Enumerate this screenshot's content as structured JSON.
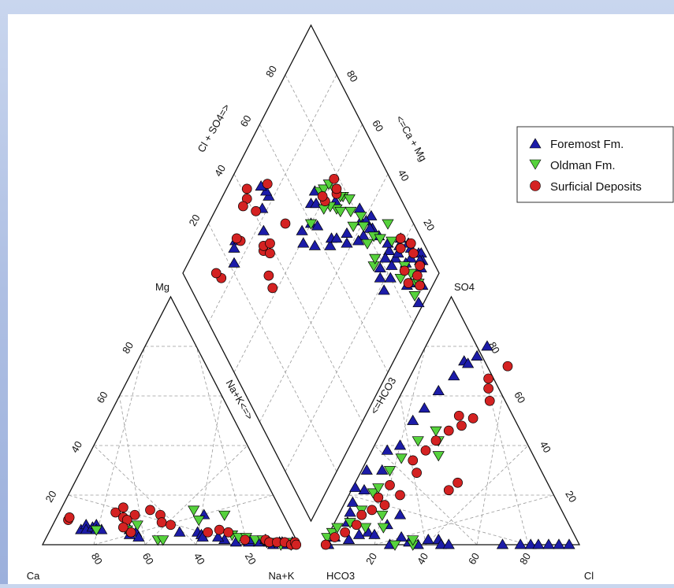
{
  "chart_data": {
    "type": "scatter",
    "subtype": "piper-diagram",
    "legend": {
      "placement": "right",
      "entries": [
        {
          "name": "Foremost Fm.",
          "marker": "triangle-up",
          "color": "#1c1ca8"
        },
        {
          "name": "Oldman Fm.",
          "marker": "triangle-down",
          "color": "#56d23c"
        },
        {
          "name": "Surficial Deposits",
          "marker": "circle",
          "color": "#d42222"
        }
      ]
    },
    "cation_triangle": {
      "corner_labels": {
        "left": "Ca",
        "right": "Na+K",
        "top": "Mg"
      },
      "bottom_ticks": [
        "80",
        "60",
        "40",
        "20"
      ],
      "left_ticks": [
        "20",
        "40",
        "60",
        "80"
      ]
    },
    "anion_triangle": {
      "corner_labels": {
        "left": "HCO3",
        "right": "Cl",
        "top": "SO4"
      },
      "bottom_ticks": [
        "20",
        "40",
        "60",
        "80"
      ],
      "right_ticks": [
        "20",
        "40",
        "60",
        "80"
      ]
    },
    "diamond": {
      "upper_left_label": "Cl + SO4=>",
      "upper_right_label": "<=Ca + Mg",
      "lower_left_label": "Na+K<=>",
      "lower_right_label": "<=HCO3",
      "upper_left_ticks": [
        "20",
        "40",
        "60",
        "80"
      ],
      "upper_right_ticks": [
        "20",
        "40",
        "60",
        "80"
      ]
    },
    "grid": true,
    "series": [
      {
        "name": "Foremost Fm.",
        "cation": [
          [
            12,
            6
          ],
          [
            15,
            6
          ],
          [
            13,
            8
          ],
          [
            14,
            6
          ],
          [
            16,
            7
          ],
          [
            17,
            8
          ],
          [
            18,
            6
          ],
          [
            20,
            6
          ],
          [
            31,
            6
          ],
          [
            32,
            4
          ],
          [
            34,
            5
          ],
          [
            36,
            3
          ],
          [
            51,
            5
          ],
          [
            58,
            5
          ],
          [
            60,
            4
          ],
          [
            61,
            3
          ],
          [
            70,
            2
          ],
          [
            75,
            1
          ],
          [
            80,
            1
          ],
          [
            84,
            1
          ],
          [
            88,
            1
          ],
          [
            90,
            0
          ],
          [
            92,
            1
          ],
          [
            95,
            0
          ],
          [
            57,
            12
          ],
          [
            67,
            3
          ],
          [
            97,
            1
          ],
          [
            93,
            1
          ],
          [
            86,
            2
          ],
          [
            80,
            2
          ]
        ],
        "anion": [
          [
            2,
            0
          ],
          [
            3,
            3
          ],
          [
            5,
            9
          ],
          [
            4,
            13
          ],
          [
            3,
            17
          ],
          [
            5,
            22
          ],
          [
            8,
            30
          ],
          [
            6,
            38
          ],
          [
            10,
            50
          ],
          [
            14,
            62
          ],
          [
            17,
            68
          ],
          [
            18,
            74
          ],
          [
            22,
            76
          ],
          [
            24,
            80
          ],
          [
            20,
            73
          ],
          [
            12,
            55
          ],
          [
            10,
            40
          ],
          [
            2,
            30
          ],
          [
            1,
            23
          ],
          [
            15,
            5
          ],
          [
            18,
            4
          ],
          [
            21,
            8
          ],
          [
            24,
            12
          ],
          [
            26,
            0
          ],
          [
            33,
            1
          ],
          [
            40,
            2
          ],
          [
            44,
            2
          ],
          [
            46,
            0
          ],
          [
            49,
            0
          ],
          [
            70,
            0
          ],
          [
            77,
            0
          ],
          [
            81,
            0
          ],
          [
            84,
            0
          ],
          [
            88,
            0
          ],
          [
            92,
            0
          ],
          [
            96,
            0
          ],
          [
            29,
            3
          ],
          [
            37,
            0
          ],
          [
            12,
            4
          ],
          [
            9,
            2
          ]
        ],
        "diamond": [
          [
            49,
            82
          ],
          [
            49,
            84
          ],
          [
            48,
            87
          ],
          [
            44,
            82
          ],
          [
            40,
            77
          ],
          [
            27,
            86
          ],
          [
            25,
            85
          ],
          [
            22,
            82
          ],
          [
            55,
            62
          ],
          [
            60,
            60
          ],
          [
            53,
            59
          ],
          [
            57,
            54
          ],
          [
            74,
            55
          ],
          [
            80,
            41
          ],
          [
            82,
            44
          ],
          [
            85,
            38
          ],
          [
            83,
            35
          ],
          [
            90,
            21
          ],
          [
            85,
            24
          ],
          [
            86,
            26
          ],
          [
            84,
            31
          ],
          [
            94,
            16
          ],
          [
            96,
            12
          ],
          [
            97,
            11
          ],
          [
            96,
            9
          ],
          [
            92,
            14
          ],
          [
            82,
            39
          ],
          [
            82,
            36
          ],
          [
            78,
            37
          ],
          [
            64,
            64
          ],
          [
            68,
            65
          ],
          [
            66,
            62
          ],
          [
            62,
            57
          ],
          [
            63,
            48
          ],
          [
            70,
            42
          ],
          [
            75,
            38
          ],
          [
            72,
            44
          ],
          [
            65,
            49
          ],
          [
            67,
            47
          ],
          [
            86,
            20
          ],
          [
            88,
            20
          ],
          [
            92,
            22
          ],
          [
            94,
            18
          ],
          [
            95,
            10
          ],
          [
            85,
            10
          ],
          [
            86,
            2
          ],
          [
            91,
            4
          ],
          [
            94,
            8
          ],
          [
            75,
            18
          ],
          [
            76,
            22
          ],
          [
            78,
            24
          ],
          [
            80,
            18
          ],
          [
            82,
            24
          ],
          [
            83,
            20
          ],
          [
            87,
            9
          ],
          [
            89,
            15
          ]
        ]
      },
      {
        "name": "Oldman Fm.",
        "cation": [
          [
            18,
            6
          ],
          [
            30,
            6
          ],
          [
            33,
            8
          ],
          [
            56,
            10
          ],
          [
            44,
            2
          ],
          [
            46,
            2
          ],
          [
            72,
            4
          ],
          [
            75,
            3
          ],
          [
            78,
            3
          ],
          [
            82,
            2
          ],
          [
            85,
            2
          ],
          [
            87,
            1
          ],
          [
            90,
            1
          ],
          [
            93,
            0
          ],
          [
            96,
            1
          ],
          [
            97,
            0
          ],
          [
            65,
            12
          ],
          [
            52,
            14
          ]
        ],
        "anion": [
          [
            0,
            3
          ],
          [
            1,
            5
          ],
          [
            2,
            7
          ],
          [
            6,
            9
          ],
          [
            8,
            14
          ],
          [
            9,
            21
          ],
          [
            10,
            23
          ],
          [
            11,
            30
          ],
          [
            13,
            35
          ],
          [
            16,
            42
          ],
          [
            21,
            46
          ],
          [
            24,
            42
          ],
          [
            27,
            36
          ],
          [
            28,
            0
          ],
          [
            20,
            7
          ],
          [
            35,
            0
          ],
          [
            34,
            2
          ],
          [
            13,
            7
          ],
          [
            17,
            12
          ]
        ],
        "diamond": [
          [
            78,
            53
          ],
          [
            77,
            54
          ],
          [
            80,
            50
          ],
          [
            70,
            63
          ],
          [
            72,
            62
          ],
          [
            76,
            58
          ],
          [
            60,
            60
          ],
          [
            73,
            53
          ],
          [
            78,
            47
          ],
          [
            76,
            43
          ],
          [
            74,
            51
          ],
          [
            80,
            39
          ],
          [
            81,
            42
          ],
          [
            71,
            56
          ],
          [
            68,
            58
          ],
          [
            75,
            61
          ],
          [
            82,
            33
          ],
          [
            84,
            30
          ],
          [
            90,
            30
          ],
          [
            88,
            25
          ],
          [
            78,
            34
          ],
          [
            76,
            27
          ],
          [
            84,
            14
          ],
          [
            88,
            15
          ],
          [
            89,
            11
          ],
          [
            89,
            7
          ],
          [
            86,
            5
          ],
          [
            90,
            6
          ],
          [
            78,
            28
          ]
        ]
      },
      {
        "name": "Surficial Deposits",
        "cation": [
          [
            5,
            10
          ],
          [
            5,
            11
          ],
          [
            30,
            12
          ],
          [
            22,
            13
          ],
          [
            24,
            15
          ],
          [
            26,
            11
          ],
          [
            28,
            10
          ],
          [
            35,
            14
          ],
          [
            40,
            12
          ],
          [
            42,
            9
          ],
          [
            46,
            8
          ],
          [
            32,
            5
          ],
          [
            28,
            7
          ],
          [
            66,
            6
          ],
          [
            70,
            5
          ],
          [
            78,
            2
          ],
          [
            86,
            2
          ],
          [
            88,
            1
          ],
          [
            91,
            1
          ],
          [
            94,
            1
          ],
          [
            97,
            0
          ],
          [
            98,
            1
          ],
          [
            99,
            0
          ],
          [
            62,
            5
          ]
        ],
        "anion": [
          [
            1,
            0
          ],
          [
            3,
            3
          ],
          [
            6,
            5
          ],
          [
            9,
            8
          ],
          [
            9,
            12
          ],
          [
            12,
            14
          ],
          [
            12,
            19
          ],
          [
            14,
            24
          ],
          [
            18,
            34
          ],
          [
            21,
            38
          ],
          [
            23,
            42
          ],
          [
            26,
            46
          ],
          [
            30,
            48
          ],
          [
            33,
            51
          ],
          [
            36,
            58
          ],
          [
            33,
            63
          ],
          [
            36,
            72
          ],
          [
            31,
            67
          ],
          [
            27,
            52
          ],
          [
            16,
            16
          ],
          [
            20,
            20
          ],
          [
            40,
            25
          ],
          [
            38,
            22
          ],
          [
            22,
            29
          ]
        ],
        "diamond": [
          [
            40,
            90
          ],
          [
            42,
            92
          ],
          [
            41,
            84
          ],
          [
            37,
            90
          ],
          [
            51,
            85
          ],
          [
            29,
            84
          ],
          [
            28,
            86
          ],
          [
            33,
            66
          ],
          [
            32,
            62
          ],
          [
            14,
            84
          ],
          [
            13,
            87
          ],
          [
            36,
            73
          ],
          [
            37,
            74
          ],
          [
            38,
            70
          ],
          [
            40,
            72
          ],
          [
            50,
            70
          ],
          [
            70,
            59
          ],
          [
            70,
            61
          ],
          [
            76,
            56
          ],
          [
            77,
            57
          ],
          [
            78,
            60
          ],
          [
            94,
            14
          ],
          [
            95,
            17
          ],
          [
            94,
            9
          ],
          [
            90,
            5
          ],
          [
            91,
            8
          ],
          [
            86,
            10
          ],
          [
            87,
            14
          ],
          [
            90,
            20
          ],
          [
            92,
            22
          ]
        ]
      }
    ]
  }
}
